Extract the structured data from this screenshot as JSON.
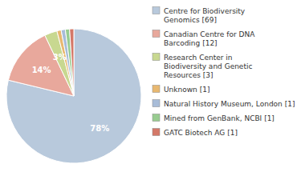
{
  "chart_data": {
    "type": "pie",
    "categories": [
      "Centre for Biodiversity\nGenomics [69]",
      "Canadian Centre for DNA\nBarcoding [12]",
      "Research Center in\nBiodiversity and Genetic\nResources [3]",
      "Unknown [1]",
      "Natural History Museum, London [1]",
      "Mined from GenBank, NCBI [1]",
      "GATC Biotech AG [1]"
    ],
    "values": [
      78,
      14,
      3,
      1,
      1,
      1,
      1
    ],
    "value_labels": [
      "78%",
      "14%",
      "3%",
      null,
      null,
      null,
      null
    ],
    "data_labels": true,
    "colors": [
      "#b8c9dc",
      "#e8a89c",
      "#c8d890",
      "#e8b870",
      "#a8bcd8",
      "#98cc90",
      "#d47868"
    ],
    "legend": "right"
  }
}
